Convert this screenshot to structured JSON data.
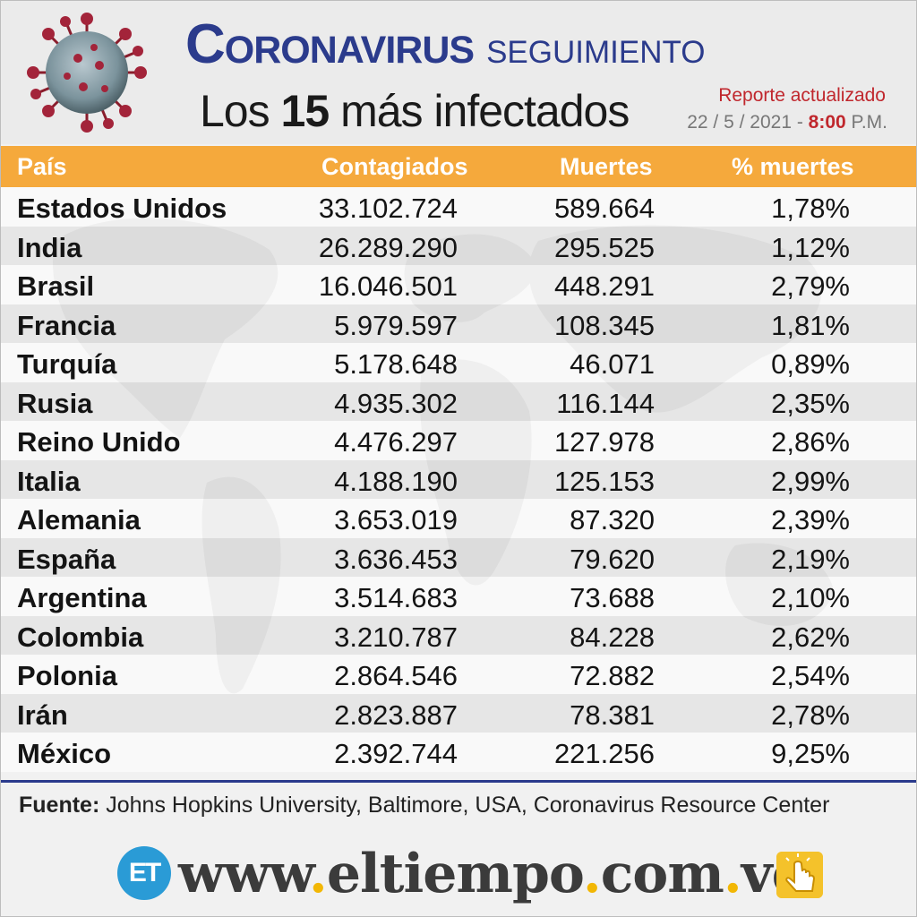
{
  "header": {
    "title_part1": "Coronavirus",
    "title_part2": "seguimiento",
    "subtitle_prefix": "Los",
    "subtitle_number": "15",
    "subtitle_suffix": "más infectados",
    "report_label": "Reporte actualizado",
    "report_date": "22 / 5 / 2021",
    "report_sep": " - ",
    "report_time": "8:00",
    "report_ampm": " P.M."
  },
  "table": {
    "headers": {
      "country": "País",
      "cases": "Contagiados",
      "deaths": "Muertes",
      "pct": "% muertes"
    },
    "rows": [
      {
        "country": "Estados Unidos",
        "cases": "33.102.724",
        "deaths": "589.664",
        "pct": "1,78%"
      },
      {
        "country": "India",
        "cases": "26.289.290",
        "deaths": "295.525",
        "pct": "1,12%"
      },
      {
        "country": "Brasil",
        "cases": "16.046.501",
        "deaths": "448.291",
        "pct": "2,79%"
      },
      {
        "country": "Francia",
        "cases": "5.979.597",
        "deaths": "108.345",
        "pct": "1,81%"
      },
      {
        "country": "Turquía",
        "cases": "5.178.648",
        "deaths": "46.071",
        "pct": "0,89%"
      },
      {
        "country": "Rusia",
        "cases": "4.935.302",
        "deaths": "116.144",
        "pct": "2,35%"
      },
      {
        "country": "Reino Unido",
        "cases": "4.476.297",
        "deaths": "127.978",
        "pct": "2,86%"
      },
      {
        "country": "Italia",
        "cases": "4.188.190",
        "deaths": "125.153",
        "pct": "2,99%"
      },
      {
        "country": "Alemania",
        "cases": "3.653.019",
        "deaths": "87.320",
        "pct": "2,39%"
      },
      {
        "country": "España",
        "cases": "3.636.453",
        "deaths": "79.620",
        "pct": "2,19%"
      },
      {
        "country": "Argentina",
        "cases": "3.514.683",
        "deaths": "73.688",
        "pct": "2,10%"
      },
      {
        "country": "Colombia",
        "cases": "3.210.787",
        "deaths": "84.228",
        "pct": "2,62%"
      },
      {
        "country": "Polonia",
        "cases": "2.864.546",
        "deaths": "72.882",
        "pct": "2,54%"
      },
      {
        "country": "Irán",
        "cases": "2.823.887",
        "deaths": "78.381",
        "pct": "2,78%"
      },
      {
        "country": "México",
        "cases": "2.392.744",
        "deaths": "221.256",
        "pct": "9,25%"
      }
    ]
  },
  "footer": {
    "source_label": "Fuente:",
    "source_text": " Johns Hopkins University, Baltimore, USA, Coronavirus Resource Center",
    "logo_text": "ET",
    "url_www": "www",
    "url_dot1": ".",
    "url_domain": "eltiempo",
    "url_dot2": ".",
    "url_com": "com",
    "url_dot3": ".",
    "url_ve": "ve"
  },
  "colors": {
    "title_blue": "#2b3b8c",
    "header_orange": "#f5a93c",
    "report_red": "#c0272d",
    "logo_blue": "#2a9bd6",
    "url_dot_yellow": "#f2b705"
  },
  "icons": [
    "coronavirus-illustration",
    "world-map-backdrop",
    "eltiempo-logo",
    "click-hand-icon"
  ]
}
